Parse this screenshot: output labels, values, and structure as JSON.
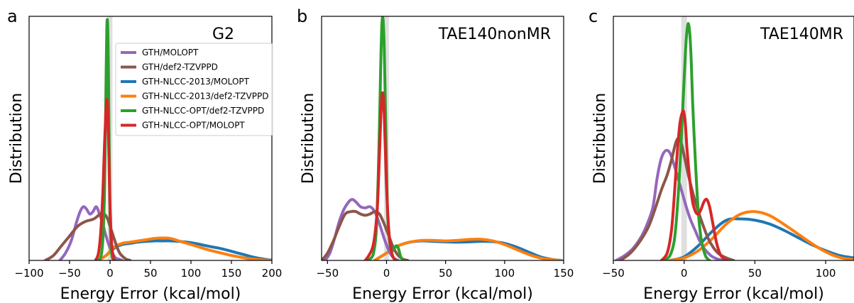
{
  "figure": {
    "ylabel": "Distribution",
    "xlabel": "Energy Error (kcal/mol)"
  },
  "colors": {
    "GTH/MOLOPT": "#9467bd",
    "GTH/def2-TZVPPD": "#8c564b",
    "GTH-NLCC-2013/MOLOPT": "#1f77b4",
    "GTH-NLCC-2013/def2-TZVPPD": "#ff7f0e",
    "GTH-NLCC-OPT/def2-TZVPPD": "#2ca02c",
    "GTH-NLCC-OPT/MOLOPT": "#d62728",
    "zero_band": "#d9d9d9"
  },
  "legend": {
    "placement": "upper right of panel a",
    "entries": [
      "GTH/MOLOPT",
      "GTH/def2-TZVPPD",
      "GTH-NLCC-2013/MOLOPT",
      "GTH-NLCC-2013/def2-TZVPPD",
      "GTH-NLCC-OPT/def2-TZVPPD",
      "GTH-NLCC-OPT/MOLOPT"
    ]
  },
  "chart_data": [
    {
      "type": "line",
      "panel": "a",
      "title": "G2",
      "xlabel": "Energy Error (kcal/mol)",
      "ylabel": "Distribution",
      "xlim": [
        -100,
        200
      ],
      "ylim": [
        0,
        1.0
      ],
      "xticks": [
        -100,
        -50,
        0,
        50,
        100,
        150,
        200
      ],
      "xtick_labels": [
        "−100",
        "−50",
        "0",
        "50",
        "100",
        "150",
        "200"
      ],
      "y_ticks_shown": false,
      "zero_band": [
        -3,
        3
      ],
      "series": [
        {
          "name": "GTH/MOLOPT",
          "x": [
            -62,
            -55,
            -48,
            -42,
            -37,
            -33,
            -29,
            -25,
            -21,
            -17,
            -13,
            -9,
            -5,
            -1,
            3,
            7,
            11,
            15
          ],
          "y": [
            0.0,
            0.03,
            0.08,
            0.15,
            0.2,
            0.22,
            0.21,
            0.19,
            0.2,
            0.22,
            0.19,
            0.15,
            0.1,
            0.06,
            0.03,
            0.01,
            0.005,
            0.0
          ]
        },
        {
          "name": "GTH/def2-TZVPPD",
          "x": [
            -80,
            -70,
            -60,
            -50,
            -40,
            -30,
            -20,
            -12,
            -7,
            -3,
            0,
            4,
            8,
            12,
            16,
            20,
            25
          ],
          "y": [
            0.0,
            0.02,
            0.06,
            0.1,
            0.14,
            0.16,
            0.17,
            0.19,
            0.19,
            0.17,
            0.14,
            0.1,
            0.06,
            0.03,
            0.015,
            0.005,
            0.0
          ]
        },
        {
          "name": "GTH-NLCC-2013/MOLOPT",
          "x": [
            -15,
            -5,
            5,
            15,
            25,
            35,
            45,
            55,
            65,
            75,
            85,
            95,
            105,
            115,
            125,
            135,
            145,
            155,
            165,
            175,
            185,
            195,
            200
          ],
          "y": [
            0.0,
            0.02,
            0.05,
            0.065,
            0.07,
            0.075,
            0.078,
            0.08,
            0.08,
            0.08,
            0.078,
            0.075,
            0.07,
            0.063,
            0.056,
            0.05,
            0.042,
            0.033,
            0.024,
            0.015,
            0.008,
            0.003,
            0.001
          ]
        },
        {
          "name": "GTH-NLCC-2013/def2-TZVPPD",
          "x": [
            -15,
            -5,
            5,
            15,
            25,
            35,
            45,
            55,
            65,
            75,
            85,
            95,
            105,
            115,
            125,
            135,
            145,
            155,
            165,
            175,
            185,
            195,
            200
          ],
          "y": [
            0.0,
            0.02,
            0.055,
            0.07,
            0.075,
            0.08,
            0.085,
            0.09,
            0.092,
            0.09,
            0.08,
            0.07,
            0.06,
            0.05,
            0.04,
            0.032,
            0.024,
            0.017,
            0.011,
            0.006,
            0.003,
            0.001,
            0.0
          ]
        },
        {
          "name": "GTH-NLCC-OPT/def2-TZVPPD",
          "x": [
            -14,
            -11,
            -9,
            -7,
            -6,
            -5,
            -4,
            -3,
            -2,
            -1,
            0,
            2,
            4,
            6
          ],
          "y": [
            0.0,
            0.02,
            0.08,
            0.25,
            0.45,
            0.72,
            0.95,
            0.97,
            0.78,
            0.45,
            0.18,
            0.03,
            0.005,
            0.0
          ]
        },
        {
          "name": "GTH-NLCC-OPT/MOLOPT",
          "x": [
            -18,
            -15,
            -13,
            -11,
            -9,
            -8,
            -7,
            -6,
            -5,
            -4,
            -3,
            -2,
            -1,
            0,
            2,
            4,
            6
          ],
          "y": [
            0.0,
            0.02,
            0.06,
            0.14,
            0.27,
            0.36,
            0.46,
            0.54,
            0.62,
            0.66,
            0.63,
            0.52,
            0.36,
            0.22,
            0.07,
            0.015,
            0.0
          ]
        }
      ]
    },
    {
      "type": "line",
      "panel": "b",
      "title": "TAE140nonMR",
      "xlabel": "Energy Error (kcal/mol)",
      "ylabel": "Distribution",
      "xlim": [
        -55,
        150
      ],
      "ylim": [
        0,
        1.0
      ],
      "xticks": [
        -50,
        0,
        50,
        100,
        150
      ],
      "xtick_labels": [
        "−50",
        "0",
        "50",
        "100",
        "150"
      ],
      "y_ticks_shown": false,
      "zero_band": [
        -2,
        2
      ],
      "series": [
        {
          "name": "GTH/MOLOPT",
          "x": [
            -52,
            -48,
            -44,
            -40,
            -36,
            -32,
            -29,
            -26,
            -22,
            -18,
            -14,
            -10,
            -6,
            -2,
            2,
            6,
            10
          ],
          "y": [
            0.0,
            0.03,
            0.09,
            0.16,
            0.21,
            0.24,
            0.25,
            0.24,
            0.22,
            0.215,
            0.22,
            0.2,
            0.15,
            0.09,
            0.04,
            0.01,
            0.0
          ]
        },
        {
          "name": "GTH/def2-TZVPPD",
          "x": [
            -55,
            -50,
            -45,
            -40,
            -35,
            -30,
            -26,
            -22,
            -18,
            -14,
            -10,
            -6,
            -2,
            2,
            6,
            10,
            14,
            18
          ],
          "y": [
            0.0,
            0.03,
            0.08,
            0.14,
            0.19,
            0.2,
            0.2,
            0.19,
            0.185,
            0.19,
            0.2,
            0.19,
            0.15,
            0.1,
            0.05,
            0.02,
            0.005,
            0.0
          ]
        },
        {
          "name": "GTH-NLCC-2013/MOLOPT",
          "x": [
            -10,
            0,
            10,
            20,
            30,
            40,
            50,
            60,
            70,
            80,
            90,
            100,
            110,
            120,
            130,
            140,
            148
          ],
          "y": [
            0.0,
            0.03,
            0.06,
            0.075,
            0.08,
            0.078,
            0.076,
            0.075,
            0.076,
            0.078,
            0.077,
            0.07,
            0.055,
            0.035,
            0.015,
            0.004,
            0.0
          ]
        },
        {
          "name": "GTH-NLCC-2013/def2-TZVPPD",
          "x": [
            -10,
            0,
            10,
            20,
            30,
            40,
            50,
            60,
            70,
            80,
            90,
            100,
            110,
            120,
            130,
            140,
            148
          ],
          "y": [
            0.0,
            0.03,
            0.06,
            0.075,
            0.082,
            0.082,
            0.08,
            0.082,
            0.086,
            0.087,
            0.08,
            0.065,
            0.045,
            0.025,
            0.01,
            0.003,
            0.0
          ]
        },
        {
          "name": "GTH-NLCC-OPT/def2-TZVPPD",
          "x": [
            -16,
            -13,
            -11,
            -9,
            -8,
            -7,
            -6,
            -5,
            -4,
            -3,
            -2,
            -1,
            0,
            1,
            3,
            5,
            8,
            10,
            12,
            14
          ],
          "y": [
            0.0,
            0.01,
            0.03,
            0.1,
            0.2,
            0.35,
            0.55,
            0.78,
            0.96,
            0.99,
            0.88,
            0.64,
            0.38,
            0.18,
            0.06,
            0.04,
            0.06,
            0.05,
            0.015,
            0.0
          ]
        },
        {
          "name": "GTH-NLCC-OPT/MOLOPT",
          "x": [
            -18,
            -15,
            -12,
            -10,
            -8,
            -7,
            -6,
            -5,
            -4,
            -3,
            -2,
            -1,
            0,
            2,
            4,
            6,
            8
          ],
          "y": [
            0.0,
            0.02,
            0.05,
            0.1,
            0.2,
            0.3,
            0.43,
            0.57,
            0.67,
            0.68,
            0.6,
            0.45,
            0.3,
            0.12,
            0.04,
            0.01,
            0.0
          ]
        }
      ]
    },
    {
      "type": "line",
      "panel": "c",
      "title": "TAE140MR",
      "xlabel": "Energy Error (kcal/mol)",
      "ylabel": "Distribution",
      "xlim": [
        -50,
        120
      ],
      "ylim": [
        0,
        1.0
      ],
      "xticks": [
        -50,
        0,
        50,
        100
      ],
      "xtick_labels": [
        "−50",
        "0",
        "50",
        "100"
      ],
      "y_ticks_shown": false,
      "zero_band": [
        -2,
        2
      ],
      "series": [
        {
          "name": "GTH/MOLOPT",
          "x": [
            -48,
            -42,
            -36,
            -30,
            -26,
            -22,
            -19,
            -16,
            -13,
            -10,
            -7,
            -4,
            -1,
            2,
            5,
            8,
            11,
            14,
            17,
            20,
            24,
            28
          ],
          "y": [
            0.0,
            0.02,
            0.05,
            0.1,
            0.15,
            0.22,
            0.34,
            0.42,
            0.45,
            0.44,
            0.39,
            0.33,
            0.27,
            0.21,
            0.16,
            0.12,
            0.08,
            0.05,
            0.03,
            0.015,
            0.005,
            0.0
          ]
        },
        {
          "name": "GTH/def2-TZVPPD",
          "x": [
            -45,
            -38,
            -31,
            -25,
            -20,
            -16,
            -12,
            -9,
            -6,
            -4,
            -2,
            0,
            3,
            6,
            9,
            13,
            17,
            21,
            25,
            30,
            35
          ],
          "y": [
            0.0,
            0.03,
            0.08,
            0.14,
            0.22,
            0.29,
            0.35,
            0.41,
            0.48,
            0.5,
            0.48,
            0.43,
            0.35,
            0.28,
            0.22,
            0.15,
            0.09,
            0.05,
            0.025,
            0.01,
            0.0
          ]
        },
        {
          "name": "GTH-NLCC-2013/MOLOPT",
          "x": [
            -10,
            0,
            10,
            20,
            30,
            40,
            50,
            60,
            70,
            80,
            90,
            100,
            110,
            120
          ],
          "y": [
            0.0,
            0.015,
            0.06,
            0.12,
            0.165,
            0.17,
            0.165,
            0.15,
            0.125,
            0.095,
            0.065,
            0.04,
            0.02,
            0.01
          ]
        },
        {
          "name": "GTH-NLCC-2013/def2-TZVPPD",
          "x": [
            -10,
            0,
            10,
            20,
            30,
            40,
            50,
            60,
            70,
            80,
            90,
            100,
            110,
            120
          ],
          "y": [
            0.0,
            0.01,
            0.04,
            0.09,
            0.15,
            0.19,
            0.2,
            0.185,
            0.15,
            0.11,
            0.07,
            0.035,
            0.012,
            0.003
          ]
        },
        {
          "name": "GTH-NLCC-OPT/def2-TZVPPD",
          "x": [
            -14,
            -10,
            -7,
            -5,
            -3,
            -1,
            1,
            2,
            3,
            4,
            5,
            6,
            8,
            10,
            12,
            15,
            18
          ],
          "y": [
            0.0,
            0.02,
            0.08,
            0.2,
            0.38,
            0.62,
            0.86,
            0.94,
            0.97,
            0.93,
            0.82,
            0.65,
            0.4,
            0.2,
            0.09,
            0.02,
            0.0
          ]
        },
        {
          "name": "GTH-NLCC-OPT/MOLOPT",
          "x": [
            -16,
            -12,
            -9,
            -7,
            -5,
            -3,
            -1,
            0,
            1,
            2,
            4,
            6,
            8,
            10,
            12,
            14,
            16,
            18,
            20,
            23,
            26,
            30
          ],
          "y": [
            0.0,
            0.03,
            0.12,
            0.26,
            0.43,
            0.56,
            0.61,
            0.6,
            0.55,
            0.46,
            0.33,
            0.24,
            0.2,
            0.19,
            0.21,
            0.24,
            0.25,
            0.22,
            0.16,
            0.07,
            0.02,
            0.0
          ]
        }
      ]
    }
  ]
}
